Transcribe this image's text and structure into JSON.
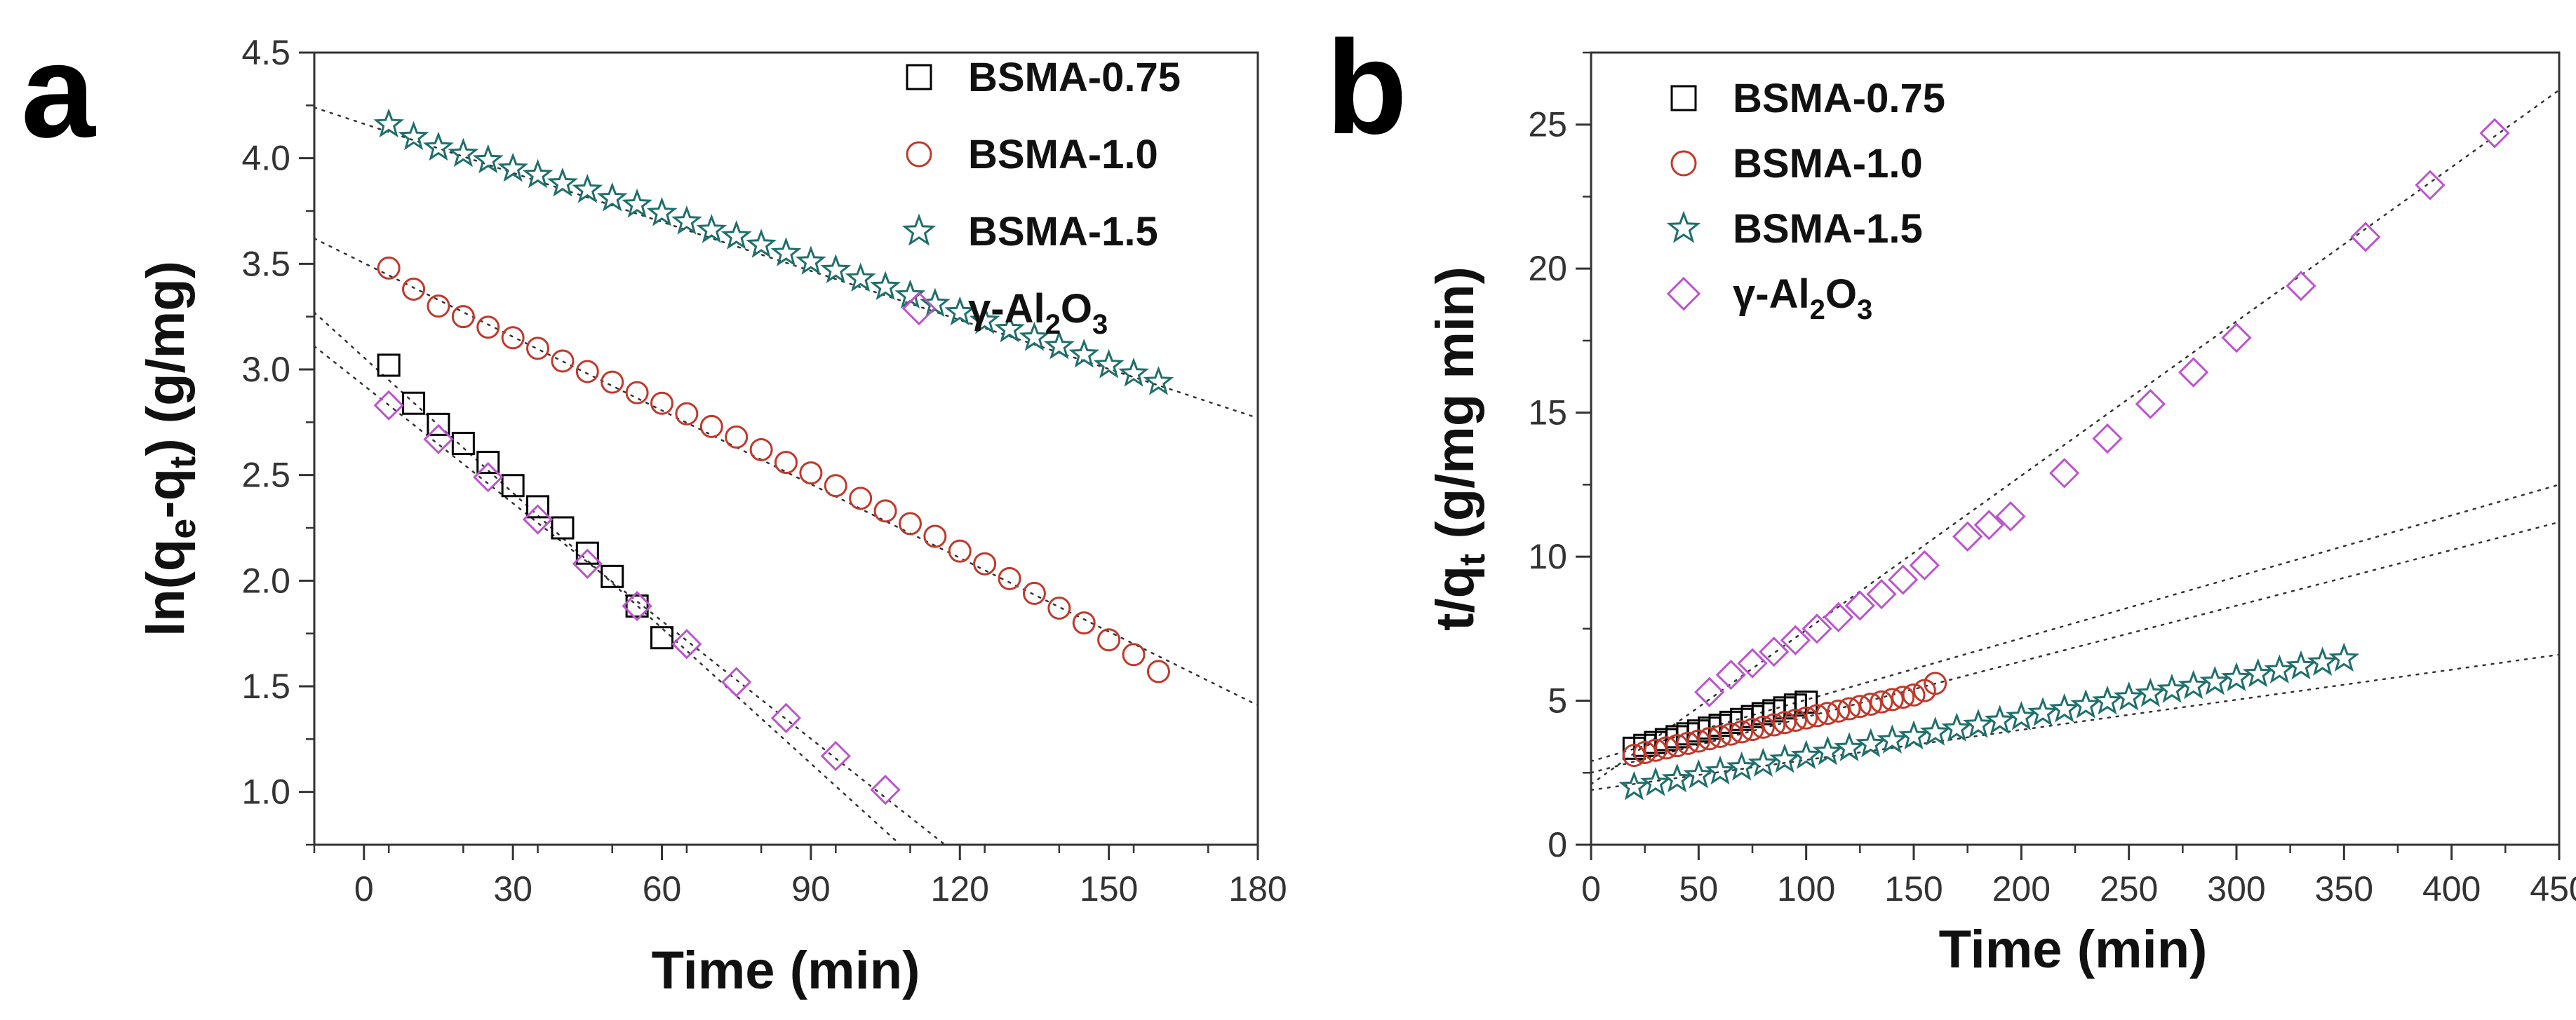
{
  "chart_data": [
    {
      "panel": "a",
      "type": "scatter",
      "title": "",
      "xlabel": "Time (min)",
      "ylabel_parts": [
        "ln(q",
        "e",
        "-q",
        "t",
        ") (g/mg)"
      ],
      "xlim": [
        -10,
        180
      ],
      "ylim": [
        0.75,
        4.5
      ],
      "xticks": [
        "0",
        "30",
        "60",
        "90",
        "120",
        "150",
        "180"
      ],
      "yticks": [
        "1.0",
        "1.5",
        "2.0",
        "2.5",
        "3.0",
        "3.5",
        "4.0",
        "4.5"
      ],
      "legend_position": "top-right",
      "series": [
        {
          "name": "BSMA-0.75",
          "label_main": "BSMA-0.75",
          "marker": "square",
          "color": "#000000",
          "x": [
            5,
            10,
            15,
            20,
            25,
            30,
            35,
            40,
            45,
            50,
            55,
            60
          ],
          "y": [
            3.02,
            2.84,
            2.74,
            2.65,
            2.56,
            2.45,
            2.35,
            2.25,
            2.13,
            2.02,
            1.88,
            1.73
          ],
          "fit": {
            "x": [
              -10,
              108
            ],
            "y": [
              3.27,
              0.75
            ]
          }
        },
        {
          "name": "BSMA-1.0",
          "label_main": "BSMA-1.0",
          "marker": "circle",
          "color": "#c0392b",
          "x": [
            5,
            10,
            15,
            20,
            25,
            30,
            35,
            40,
            45,
            50,
            55,
            60,
            65,
            70,
            75,
            80,
            85,
            90,
            95,
            100,
            105,
            110,
            115,
            120,
            125,
            130,
            135,
            140,
            145,
            150,
            155,
            160
          ],
          "y": [
            3.48,
            3.38,
            3.3,
            3.25,
            3.2,
            3.15,
            3.1,
            3.04,
            2.99,
            2.94,
            2.89,
            2.84,
            2.79,
            2.73,
            2.68,
            2.62,
            2.56,
            2.51,
            2.45,
            2.39,
            2.33,
            2.27,
            2.21,
            2.14,
            2.08,
            2.01,
            1.94,
            1.87,
            1.8,
            1.72,
            1.65,
            1.57
          ],
          "fit": {
            "x": [
              -10,
              180
            ],
            "y": [
              3.62,
              1.41
            ]
          }
        },
        {
          "name": "BSMA-1.5",
          "label_main": "BSMA-1.5",
          "marker": "star",
          "color": "#1f6f6b",
          "x": [
            5,
            10,
            15,
            20,
            25,
            30,
            35,
            40,
            45,
            50,
            55,
            60,
            65,
            70,
            75,
            80,
            85,
            90,
            95,
            100,
            105,
            110,
            115,
            120,
            125,
            130,
            135,
            140,
            145,
            150,
            155,
            160
          ],
          "y": [
            4.16,
            4.1,
            4.05,
            4.02,
            3.99,
            3.95,
            3.92,
            3.88,
            3.85,
            3.81,
            3.78,
            3.74,
            3.7,
            3.66,
            3.63,
            3.59,
            3.55,
            3.51,
            3.47,
            3.43,
            3.39,
            3.35,
            3.31,
            3.27,
            3.23,
            3.19,
            3.15,
            3.11,
            3.07,
            3.02,
            2.98,
            2.94
          ],
          "fit": {
            "x": [
              -10,
              180
            ],
            "y": [
              4.24,
              2.77
            ]
          }
        },
        {
          "name": "γ-Al2O3",
          "label_main": "γ-Al",
          "label_sub1": "2",
          "label_mid": "O",
          "label_sub2": "3",
          "marker": "diamond",
          "color": "#bb55cc",
          "x": [
            5,
            15,
            25,
            35,
            45,
            55,
            65,
            75,
            85,
            95,
            105
          ],
          "y": [
            2.83,
            2.67,
            2.49,
            2.29,
            2.08,
            1.88,
            1.7,
            1.52,
            1.35,
            1.17,
            1.01
          ],
          "fit": {
            "x": [
              -10,
              117
            ],
            "y": [
              3.11,
              0.75
            ]
          }
        }
      ]
    },
    {
      "panel": "b",
      "type": "scatter",
      "title": "",
      "xlabel": "Time (min)",
      "ylabel_parts": [
        "t/q",
        "t",
        " (g/mg min)"
      ],
      "xlim": [
        0,
        450
      ],
      "ylim": [
        0,
        27.5
      ],
      "xticks": [
        "0",
        "50",
        "100",
        "150",
        "200",
        "250",
        "300",
        "350",
        "400",
        "450"
      ],
      "yticks": [
        "0",
        "5",
        "10",
        "15",
        "20",
        "25"
      ],
      "legend_position": "top-left",
      "series": [
        {
          "name": "BSMA-0.75",
          "label_main": "BSMA-0.75",
          "marker": "square",
          "color": "#000000",
          "x": [
            20,
            25,
            30,
            35,
            40,
            45,
            50,
            55,
            60,
            65,
            70,
            75,
            80,
            85,
            90,
            95,
            100
          ],
          "y": [
            3.35,
            3.45,
            3.55,
            3.65,
            3.75,
            3.85,
            3.95,
            4.05,
            4.15,
            4.25,
            4.35,
            4.45,
            4.55,
            4.65,
            4.75,
            4.85,
            4.95
          ],
          "fit": {
            "x": [
              0,
              450
            ],
            "y": [
              2.9,
              12.5
            ]
          }
        },
        {
          "name": "BSMA-1.0",
          "label_main": "BSMA-1.0",
          "marker": "circle",
          "color": "#c0392b",
          "x": [
            20,
            25,
            30,
            35,
            40,
            45,
            50,
            55,
            60,
            65,
            70,
            75,
            80,
            85,
            90,
            95,
            100,
            105,
            110,
            115,
            120,
            125,
            130,
            135,
            140,
            145,
            150,
            155,
            160
          ],
          "y": [
            3.1,
            3.2,
            3.28,
            3.36,
            3.44,
            3.52,
            3.6,
            3.68,
            3.76,
            3.84,
            3.92,
            4.0,
            4.08,
            4.16,
            4.24,
            4.32,
            4.4,
            4.48,
            4.56,
            4.64,
            4.72,
            4.8,
            4.88,
            4.96,
            5.04,
            5.12,
            5.2,
            5.35,
            5.6
          ],
          "fit": {
            "x": [
              0,
              450
            ],
            "y": [
              2.5,
              11.2
            ]
          }
        },
        {
          "name": "BSMA-1.5",
          "label_main": "BSMA-1.5",
          "marker": "star",
          "color": "#1f6f6b",
          "x": [
            20,
            30,
            40,
            50,
            60,
            70,
            80,
            90,
            100,
            110,
            120,
            130,
            140,
            150,
            160,
            170,
            180,
            190,
            200,
            210,
            220,
            230,
            240,
            250,
            260,
            270,
            280,
            290,
            300,
            310,
            320,
            330,
            340,
            350
          ],
          "y": [
            2.0,
            2.14,
            2.27,
            2.41,
            2.54,
            2.68,
            2.81,
            2.95,
            3.08,
            3.22,
            3.35,
            3.49,
            3.62,
            3.76,
            3.89,
            4.03,
            4.16,
            4.3,
            4.43,
            4.57,
            4.7,
            4.84,
            4.97,
            5.11,
            5.24,
            5.38,
            5.51,
            5.65,
            5.78,
            5.92,
            6.05,
            6.19,
            6.32,
            6.46
          ],
          "fit": {
            "x": [
              0,
              450
            ],
            "y": [
              1.9,
              6.6
            ]
          }
        },
        {
          "name": "γ-Al2O3",
          "label_main": "γ-Al",
          "label_sub1": "2",
          "label_mid": "O",
          "label_sub2": "3",
          "marker": "diamond",
          "color": "#bb55cc",
          "x": [
            55,
            65,
            75,
            85,
            95,
            105,
            115,
            125,
            135,
            145,
            155,
            175,
            185,
            195,
            220,
            240,
            260,
            280,
            300,
            330,
            360,
            390,
            420
          ],
          "y": [
            5.3,
            5.9,
            6.3,
            6.7,
            7.1,
            7.5,
            7.9,
            8.3,
            8.7,
            9.2,
            9.7,
            10.7,
            11.1,
            11.4,
            12.9,
            14.1,
            15.3,
            16.4,
            17.6,
            19.4,
            21.1,
            22.9,
            24.7
          ],
          "fit": {
            "x": [
              0,
              450
            ],
            "y": [
              2.1,
              26.2
            ]
          }
        }
      ]
    }
  ],
  "panels": {
    "a": {
      "letter": "a"
    },
    "b": {
      "letter": "b"
    }
  }
}
